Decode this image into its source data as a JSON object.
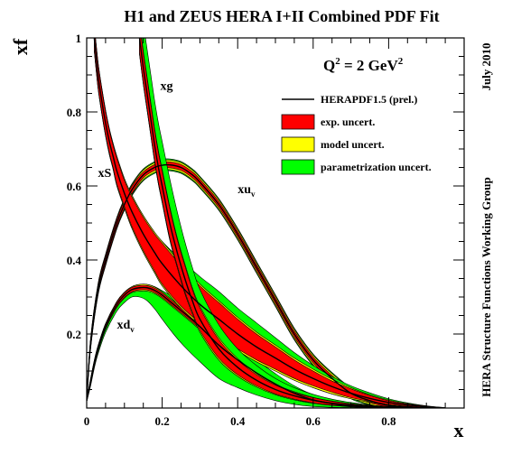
{
  "chart_data": {
    "type": "area",
    "title": "H1 and ZEUS HERA I+II Combined PDF Fit",
    "scale_label": "Q²= 2 GeV²",
    "scale_label_parts": {
      "q": "Q",
      "q_exp": "2",
      "eq": " = 2 GeV",
      "unit_exp": "2"
    },
    "date_label": "July 2010",
    "group_label": "HERA Structure Functions Working Group",
    "xlabel": "x",
    "ylabel": "xf",
    "xlim": [
      0,
      1
    ],
    "ylim": [
      0,
      1
    ],
    "xticks": [
      {
        "v": 0,
        "label": "0"
      },
      {
        "v": 0.2,
        "label": "0.2"
      },
      {
        "v": 0.4,
        "label": "0.4"
      },
      {
        "v": 0.6,
        "label": "0.6"
      },
      {
        "v": 0.8,
        "label": "0.8"
      }
    ],
    "yticks": [
      {
        "v": 0.2,
        "label": "0.2"
      },
      {
        "v": 0.4,
        "label": "0.4"
      },
      {
        "v": 0.6,
        "label": "0.6"
      },
      {
        "v": 0.8,
        "label": "0.8"
      },
      {
        "v": 1.0,
        "label": "1"
      }
    ],
    "legend": {
      "placement": "top-right",
      "entries": [
        {
          "label": "HERAPDF1.5 (prel.)",
          "kind": "line",
          "color": "#000000"
        },
        {
          "label": "exp. uncert.",
          "kind": "box",
          "color": "#ff0000"
        },
        {
          "label": "model uncert.",
          "kind": "box",
          "color": "#ffff00"
        },
        {
          "label": "parametrization uncert.",
          "kind": "box",
          "color": "#00ff00"
        }
      ]
    },
    "colors": {
      "central": "#000000",
      "exp": "#ff0000",
      "model": "#ffff00",
      "param": "#00ff00"
    },
    "series": [
      {
        "name": "xu",
        "label_base": "xu",
        "label_sub": "v",
        "label_at": [
          0.4,
          0.58
        ],
        "x": [
          0.0,
          0.01,
          0.03,
          0.05,
          0.08,
          0.1,
          0.12,
          0.15,
          0.18,
          0.2,
          0.22,
          0.25,
          0.28,
          0.3,
          0.35,
          0.4,
          0.45,
          0.5,
          0.55,
          0.6,
          0.65,
          0.7,
          0.75,
          0.8,
          0.85,
          0.9
        ],
        "central": [
          0.02,
          0.17,
          0.32,
          0.4,
          0.5,
          0.55,
          0.59,
          0.63,
          0.65,
          0.656,
          0.657,
          0.65,
          0.63,
          0.61,
          0.55,
          0.47,
          0.38,
          0.29,
          0.2,
          0.13,
          0.08,
          0.04,
          0.02,
          0.007,
          0.002,
          0.0
        ],
        "exp": [
          0.002,
          0.01,
          0.01,
          0.01,
          0.01,
          0.01,
          0.01,
          0.008,
          0.008,
          0.008,
          0.008,
          0.008,
          0.008,
          0.008,
          0.008,
          0.008,
          0.008,
          0.008,
          0.008,
          0.008,
          0.008,
          0.008,
          0.006,
          0.004,
          0.002,
          0.0
        ],
        "model": [
          0.003,
          0.012,
          0.013,
          0.013,
          0.013,
          0.013,
          0.013,
          0.013,
          0.013,
          0.013,
          0.013,
          0.013,
          0.013,
          0.013,
          0.013,
          0.013,
          0.013,
          0.013,
          0.013,
          0.013,
          0.013,
          0.012,
          0.01,
          0.007,
          0.004,
          0.001
        ],
        "param": [
          0.003,
          0.015,
          0.016,
          0.016,
          0.016,
          0.016,
          0.016,
          0.016,
          0.016,
          0.016,
          0.016,
          0.016,
          0.016,
          0.016,
          0.016,
          0.016,
          0.016,
          0.016,
          0.016,
          0.016,
          0.016,
          0.015,
          0.012,
          0.009,
          0.005,
          0.001
        ]
      },
      {
        "name": "xd",
        "label_base": "xd",
        "label_sub": "v",
        "label_at": [
          0.08,
          0.215
        ],
        "x": [
          0.0,
          0.01,
          0.02,
          0.03,
          0.05,
          0.08,
          0.1,
          0.12,
          0.14,
          0.16,
          0.18,
          0.2,
          0.23,
          0.26,
          0.3,
          0.35,
          0.4,
          0.45,
          0.5,
          0.55,
          0.6,
          0.65,
          0.7,
          0.75,
          0.8
        ],
        "central": [
          0.02,
          0.07,
          0.12,
          0.16,
          0.22,
          0.28,
          0.305,
          0.32,
          0.325,
          0.325,
          0.318,
          0.305,
          0.28,
          0.255,
          0.22,
          0.17,
          0.13,
          0.095,
          0.065,
          0.04,
          0.022,
          0.012,
          0.006,
          0.002,
          0.0
        ],
        "exp": [
          0.002,
          0.005,
          0.006,
          0.006,
          0.006,
          0.006,
          0.006,
          0.006,
          0.006,
          0.006,
          0.006,
          0.006,
          0.006,
          0.006,
          0.006,
          0.006,
          0.006,
          0.006,
          0.005,
          0.004,
          0.003,
          0.002,
          0.001,
          0.001,
          0.0
        ],
        "model": [
          0.003,
          0.007,
          0.008,
          0.008,
          0.008,
          0.008,
          0.008,
          0.008,
          0.009,
          0.009,
          0.009,
          0.009,
          0.009,
          0.009,
          0.009,
          0.009,
          0.009,
          0.009,
          0.008,
          0.007,
          0.005,
          0.004,
          0.003,
          0.002,
          0.001
        ],
        "param_lo": [
          0.003,
          0.012,
          0.013,
          0.014,
          0.016,
          0.018,
          0.02,
          0.02,
          0.025,
          0.035,
          0.05,
          0.065,
          0.08,
          0.09,
          0.095,
          0.09,
          0.075,
          0.06,
          0.045,
          0.03,
          0.018,
          0.01,
          0.005,
          0.002,
          0.001
        ],
        "param_hi": [
          0.003,
          0.008,
          0.008,
          0.008,
          0.008,
          0.008,
          0.008,
          0.008,
          0.008,
          0.008,
          0.01,
          0.012,
          0.02,
          0.03,
          0.04,
          0.045,
          0.04,
          0.035,
          0.028,
          0.02,
          0.014,
          0.01,
          0.006,
          0.003,
          0.001
        ]
      },
      {
        "name": "xS",
        "label_base": "xS",
        "label_sub": "",
        "label_at": [
          0.03,
          0.625
        ],
        "x": [
          0.02,
          0.03,
          0.04,
          0.05,
          0.06,
          0.07,
          0.08,
          0.1,
          0.12,
          0.15,
          0.18,
          0.2,
          0.25,
          0.3,
          0.35,
          0.4,
          0.45,
          0.5,
          0.55,
          0.6,
          0.65,
          0.7,
          0.75,
          0.8,
          0.85,
          0.9,
          0.95
        ],
        "central": [
          1.0,
          0.9,
          0.83,
          0.77,
          0.72,
          0.68,
          0.64,
          0.58,
          0.53,
          0.47,
          0.42,
          0.39,
          0.33,
          0.28,
          0.24,
          0.2,
          0.165,
          0.135,
          0.105,
          0.08,
          0.058,
          0.04,
          0.026,
          0.015,
          0.008,
          0.003,
          0.0
        ],
        "exp": [
          0.03,
          0.03,
          0.03,
          0.03,
          0.03,
          0.03,
          0.035,
          0.035,
          0.04,
          0.045,
          0.05,
          0.055,
          0.055,
          0.05,
          0.045,
          0.04,
          0.035,
          0.03,
          0.025,
          0.02,
          0.015,
          0.012,
          0.008,
          0.005,
          0.003,
          0.002,
          0.0
        ],
        "model": [
          0.035,
          0.035,
          0.035,
          0.035,
          0.035,
          0.035,
          0.04,
          0.04,
          0.045,
          0.05,
          0.055,
          0.06,
          0.06,
          0.055,
          0.05,
          0.045,
          0.04,
          0.035,
          0.03,
          0.025,
          0.02,
          0.015,
          0.01,
          0.007,
          0.004,
          0.002,
          0.001
        ],
        "param_lo": [
          0.035,
          0.035,
          0.035,
          0.035,
          0.035,
          0.035,
          0.04,
          0.04,
          0.045,
          0.05,
          0.055,
          0.06,
          0.06,
          0.055,
          0.05,
          0.045,
          0.04,
          0.035,
          0.03,
          0.025,
          0.02,
          0.015,
          0.01,
          0.007,
          0.004,
          0.002,
          0.001
        ],
        "param_hi": [
          0.035,
          0.035,
          0.035,
          0.035,
          0.035,
          0.035,
          0.04,
          0.04,
          0.045,
          0.05,
          0.055,
          0.06,
          0.07,
          0.075,
          0.075,
          0.07,
          0.065,
          0.055,
          0.045,
          0.035,
          0.027,
          0.02,
          0.015,
          0.01,
          0.006,
          0.003,
          0.001
        ]
      },
      {
        "name": "xg",
        "label_base": "xg",
        "label_sub": "",
        "label_at": [
          0.195,
          0.86
        ],
        "x": [
          0.14,
          0.15,
          0.16,
          0.17,
          0.18,
          0.19,
          0.2,
          0.22,
          0.24,
          0.26,
          0.28,
          0.3,
          0.35,
          0.4,
          0.45,
          0.5,
          0.55,
          0.6,
          0.65,
          0.7,
          0.75,
          0.8,
          0.85,
          0.9
        ],
        "central": [
          1.0,
          0.92,
          0.85,
          0.78,
          0.71,
          0.65,
          0.6,
          0.5,
          0.42,
          0.35,
          0.29,
          0.24,
          0.16,
          0.11,
          0.075,
          0.05,
          0.033,
          0.021,
          0.013,
          0.008,
          0.004,
          0.002,
          0.001,
          0.0
        ],
        "exp": [
          0.04,
          0.04,
          0.04,
          0.04,
          0.04,
          0.04,
          0.04,
          0.04,
          0.035,
          0.035,
          0.03,
          0.03,
          0.025,
          0.02,
          0.015,
          0.012,
          0.009,
          0.007,
          0.005,
          0.003,
          0.002,
          0.001,
          0.001,
          0.0
        ],
        "model": [
          0.045,
          0.045,
          0.045,
          0.045,
          0.045,
          0.045,
          0.045,
          0.045,
          0.04,
          0.04,
          0.035,
          0.035,
          0.03,
          0.024,
          0.018,
          0.014,
          0.011,
          0.008,
          0.006,
          0.004,
          0.003,
          0.002,
          0.001,
          0.001
        ],
        "param_lo": [
          0.045,
          0.045,
          0.045,
          0.045,
          0.045,
          0.045,
          0.045,
          0.045,
          0.04,
          0.04,
          0.035,
          0.035,
          0.03,
          0.024,
          0.018,
          0.014,
          0.011,
          0.008,
          0.006,
          0.004,
          0.003,
          0.002,
          0.001,
          0.001
        ],
        "param_hi": [
          0.12,
          0.12,
          0.12,
          0.12,
          0.12,
          0.12,
          0.12,
          0.12,
          0.11,
          0.1,
          0.09,
          0.08,
          0.065,
          0.05,
          0.04,
          0.03,
          0.022,
          0.016,
          0.011,
          0.007,
          0.004,
          0.002,
          0.001,
          0.001
        ]
      }
    ]
  }
}
